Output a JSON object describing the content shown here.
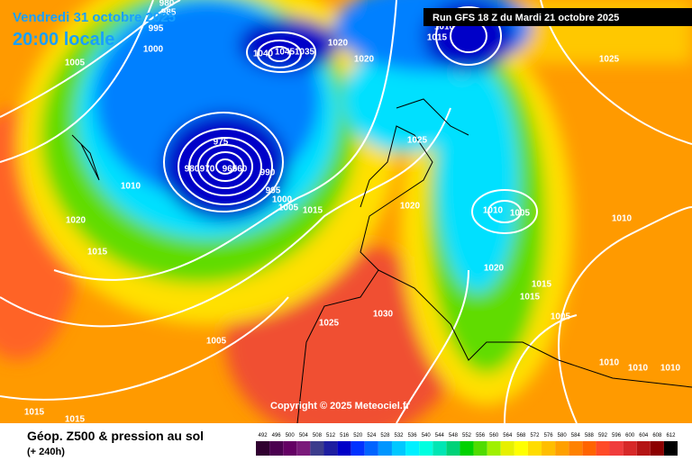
{
  "header": {
    "date": "Vendredi 31 octobre 2025",
    "time": "20:00 locale",
    "run": "Run GFS 18 Z du Mardi 21 octobre 2025"
  },
  "isobar_labels": [
    "1005",
    "1000",
    "995",
    "985",
    "980",
    "1020",
    "1020",
    "1015",
    "1010",
    "1025",
    "1025",
    "1010",
    "1020",
    "1015",
    "975",
    "980",
    "970",
    "965",
    "960",
    "990",
    "995",
    "1000",
    "1005",
    "1015",
    "1020",
    "1010",
    "1005",
    "1010",
    "1020",
    "1015",
    "1015",
    "1005",
    "1025",
    "1030",
    "1005",
    "1010",
    "1010",
    "1010",
    "1015",
    "1015",
    "1040",
    "1045",
    "1035"
  ],
  "copyright": "Copyright © 2025 Meteociel.fr",
  "legend": {
    "title": "Géop. Z500 & pression au sol",
    "subtitle": "(+ 240h)",
    "scale": [
      492,
      496,
      500,
      504,
      508,
      512,
      516,
      520,
      524,
      528,
      532,
      536,
      540,
      544,
      548,
      552,
      556,
      560,
      564,
      568,
      572,
      576,
      580,
      584,
      588,
      592,
      596,
      600,
      604,
      608,
      612
    ],
    "colors": [
      "#300030",
      "#4b0050",
      "#640064",
      "#7a1a7a",
      "#3c3c8c",
      "#1e1ea0",
      "#0000c8",
      "#0032ff",
      "#0064ff",
      "#0096ff",
      "#00c8ff",
      "#00f0ff",
      "#00ffe0",
      "#00e6b4",
      "#00d278",
      "#00d200",
      "#50dc00",
      "#a0f000",
      "#e6f000",
      "#ffff00",
      "#ffdc00",
      "#ffbe00",
      "#ffa000",
      "#ff8200",
      "#ff6400",
      "#ff4b28",
      "#f03c3c",
      "#d72828",
      "#b41414",
      "#8c0000",
      "#000000"
    ]
  }
}
